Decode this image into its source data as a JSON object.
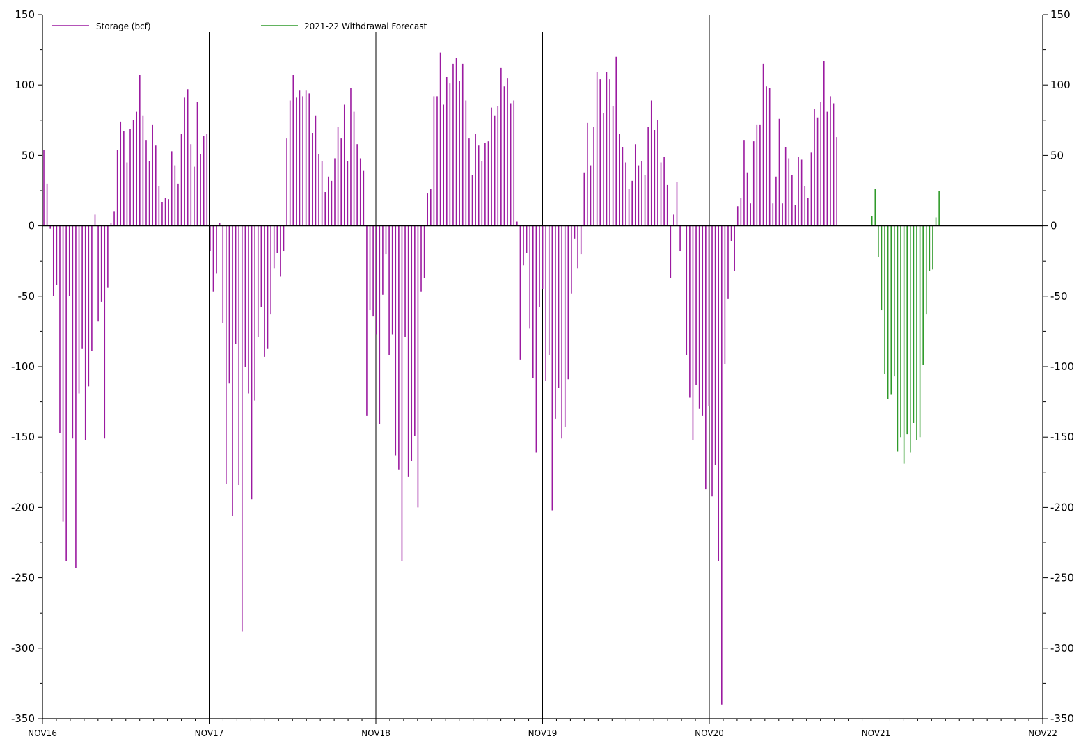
{
  "chart_data": {
    "type": "bar",
    "ylim": [
      -350,
      150
    ],
    "y_ticks": [
      150,
      100,
      50,
      0,
      -50,
      -100,
      -150,
      -200,
      -250,
      -300,
      -350
    ],
    "y_tick_labels": [
      "150",
      "100",
      "50",
      "0",
      "-50",
      "-100",
      "-150",
      "-200",
      "-250",
      "-300",
      "-350"
    ],
    "x_ticks": [
      "NOV16",
      "NOV17",
      "NOV18",
      "NOV19",
      "NOV20",
      "NOV21",
      "NOV22"
    ],
    "grid": "vertical lines at each year boundary",
    "legend_position": "top-left",
    "colors": {
      "storage": "#9b1aa0",
      "forecast": "#2f9a2a",
      "axis": "#000000"
    },
    "series": [
      {
        "name": "Storage (bcf)",
        "start": "NOV16",
        "step_weeks": 1,
        "values": [
          54,
          30,
          -2,
          -50,
          -42,
          -147,
          -210,
          -238,
          -50,
          -151,
          -243,
          -119,
          -87,
          -152,
          -114,
          -89,
          8,
          -68,
          -54,
          -151,
          -44,
          2,
          10,
          54,
          74,
          67,
          45,
          69,
          75,
          81,
          107,
          78,
          61,
          46,
          72,
          57,
          28,
          17,
          20,
          19,
          53,
          43,
          30,
          65,
          91,
          97,
          58,
          42,
          88,
          51,
          64,
          65,
          -18,
          -47,
          -34,
          2,
          -69,
          -183,
          -112,
          -206,
          -84,
          -184,
          -288,
          -100,
          -119,
          -194,
          -124,
          -79,
          -58,
          -93,
          -87,
          -63,
          -30,
          -19,
          -36,
          -18,
          62,
          89,
          107,
          91,
          96,
          92,
          96,
          94,
          66,
          78,
          51,
          46,
          24,
          35,
          32,
          48,
          70,
          62,
          86,
          46,
          98,
          81,
          58,
          48,
          39,
          -135,
          -60,
          -64,
          -77,
          -141,
          -49,
          -20,
          -92,
          -77,
          -163,
          -173,
          -238,
          -79,
          -178,
          -167,
          -149,
          -200,
          -47,
          -37,
          23,
          26,
          92,
          92,
          123,
          86,
          106,
          101,
          115,
          119,
          103,
          115,
          89,
          62,
          36,
          65,
          57,
          46,
          59,
          60,
          84,
          78,
          85,
          112,
          99,
          105,
          87,
          89,
          3,
          -95,
          -28,
          -19,
          -73,
          -108,
          -161,
          -58,
          -45,
          -110,
          -92,
          -202,
          -137,
          -115,
          -151,
          -143,
          -109,
          -48,
          -9,
          -30,
          -20,
          38,
          73,
          43,
          70,
          109,
          104,
          80,
          109,
          104,
          85,
          120,
          65,
          56,
          45,
          26,
          32,
          58,
          43,
          46,
          36,
          70,
          89,
          68,
          75,
          45,
          49,
          29,
          -37,
          8,
          31,
          -18,
          0,
          -92,
          -122,
          -152,
          -113,
          -130,
          -135,
          -187,
          -128,
          -192,
          -170,
          -238,
          -340,
          -98,
          -52,
          -11,
          -32,
          14,
          20,
          61,
          38,
          16,
          60,
          72,
          72,
          115,
          99,
          98,
          16,
          35,
          76,
          16,
          56,
          48,
          36,
          15,
          49,
          47,
          28,
          20,
          52,
          83,
          77,
          88,
          117,
          81,
          92,
          87,
          63
        ],
        "color": "#9b1aa0"
      },
      {
        "name": "2021-22 Withdrawal Forecast",
        "start_index": 259,
        "step_weeks": 1,
        "values": [
          7,
          26,
          -22,
          -60,
          -105,
          -123,
          -120,
          -107,
          -160,
          -150,
          -169,
          -148,
          -161,
          -140,
          -152,
          -150,
          -99,
          -63,
          -32,
          -31,
          6,
          25
        ],
        "color": "#2f9a2a"
      }
    ]
  }
}
